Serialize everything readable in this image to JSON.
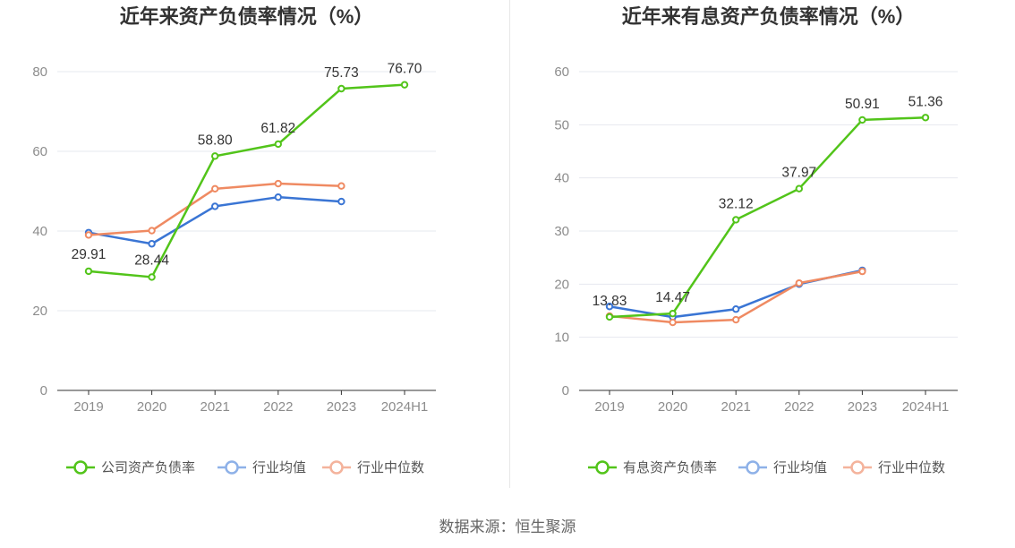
{
  "colors": {
    "company": "#52c41a",
    "industry_avg": "#3a75d4",
    "industry_median": "#ef8a62",
    "legend_avg": "#8eb1e8",
    "legend_median": "#f4b39c",
    "axis": "#333333",
    "grid": "#e6e8ef",
    "tick_text": "#8c8c8c",
    "label_text": "#333333"
  },
  "source": "数据来源：恒生聚源",
  "chart_data": [
    {
      "type": "line",
      "title": "近年来资产负债率情况（%）",
      "xlabel": "",
      "ylabel": "",
      "categories": [
        "2019",
        "2020",
        "2021",
        "2022",
        "2023",
        "2024H1"
      ],
      "ylim": [
        0,
        80
      ],
      "yticks": [
        0,
        20,
        40,
        60,
        80
      ],
      "grid": true,
      "legend_position": "bottom",
      "series": [
        {
          "name": "公司资产负债率",
          "key": "company",
          "values": [
            29.91,
            28.44,
            58.8,
            61.82,
            75.73,
            76.7
          ],
          "labels": [
            "29.91",
            "28.44",
            "58.80",
            "61.82",
            "75.73",
            "76.70"
          ]
        },
        {
          "name": "行业均值",
          "key": "industry_avg",
          "values": [
            39.6,
            36.8,
            46.2,
            48.5,
            47.4,
            null
          ]
        },
        {
          "name": "行业中位数",
          "key": "industry_median",
          "values": [
            39.0,
            40.1,
            50.6,
            51.9,
            51.3,
            null
          ]
        }
      ]
    },
    {
      "type": "line",
      "title": "近年来有息资产负债率情况（%）",
      "xlabel": "",
      "ylabel": "",
      "categories": [
        "2019",
        "2020",
        "2021",
        "2022",
        "2023",
        "2024H1"
      ],
      "ylim": [
        0,
        60
      ],
      "yticks": [
        0,
        10,
        20,
        30,
        40,
        50,
        60
      ],
      "grid": true,
      "legend_position": "bottom",
      "series": [
        {
          "name": "有息资产负债率",
          "key": "company",
          "values": [
            13.83,
            14.47,
            32.12,
            37.97,
            50.91,
            51.36
          ],
          "labels": [
            "13.83",
            "14.47",
            "32.12",
            "37.97",
            "50.91",
            "51.36"
          ]
        },
        {
          "name": "行业均值",
          "key": "industry_avg",
          "values": [
            15.8,
            13.8,
            15.3,
            20.0,
            22.6,
            null
          ]
        },
        {
          "name": "行业中位数",
          "key": "industry_median",
          "values": [
            14.0,
            12.8,
            13.3,
            20.2,
            22.4,
            null
          ]
        }
      ]
    }
  ]
}
